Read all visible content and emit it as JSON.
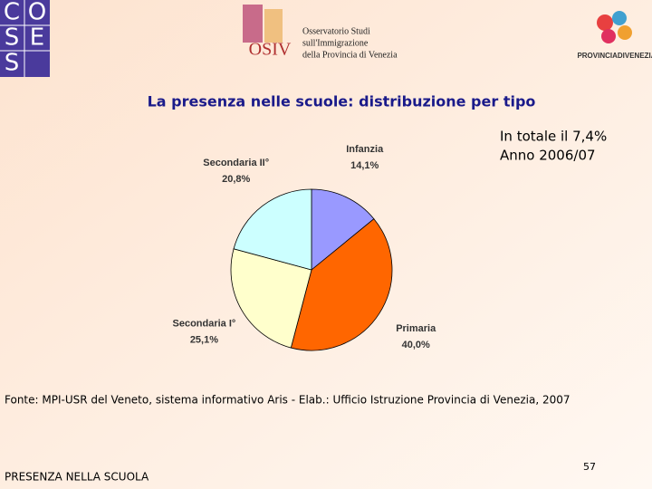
{
  "header": {
    "coses_letters": [
      "C",
      "O",
      "S",
      "E",
      "S"
    ],
    "osiv_mark": "OSIV",
    "osiv_lines": [
      "Osservatorio Studi",
      "sull'Immigrazione",
      "della Provincia di Venezia"
    ],
    "provincia": "PROVINCIADIVENEZIA"
  },
  "chart_data": {
    "type": "pie",
    "title": "La presenza nelle scuole: distribuzione per tipo",
    "annotations": [
      "In totale il 7,4%",
      "Anno 2006/07"
    ],
    "categories": [
      "Infanzia",
      "Primaria",
      "Secondaria I°",
      "Secondaria II°"
    ],
    "values": [
      14.1,
      40.0,
      25.1,
      20.8
    ],
    "value_labels": [
      "14,1%",
      "40,0%",
      "25,1%",
      "20,8%"
    ],
    "colors": [
      "#9999ff",
      "#ff6600",
      "#ffffcc",
      "#ccffff"
    ]
  },
  "source": "Fonte: MPI-USR del Veneto, sistema informativo Aris - Elab.: Ufficio Istruzione Provincia di Venezia, 2007",
  "footer": {
    "text": "PRESENZA NELLA SCUOLA",
    "page": "57"
  }
}
